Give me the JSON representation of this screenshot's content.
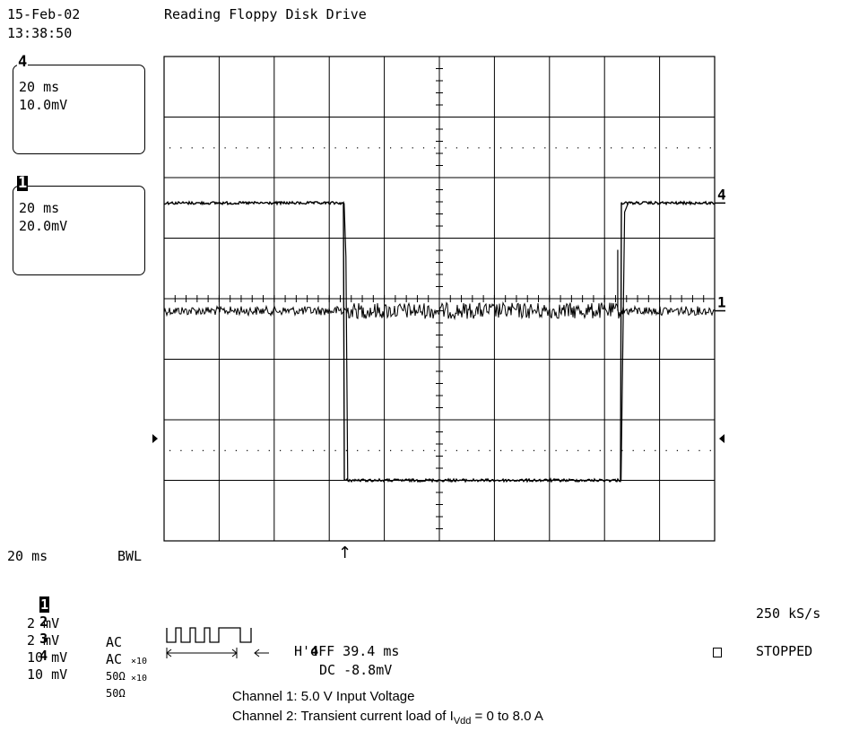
{
  "header": {
    "date": "15-Feb-02",
    "time": "13:38:50",
    "title": "Reading Floppy Disk Drive"
  },
  "channel_boxes": [
    {
      "number": "4",
      "timebase": "20 ms",
      "volts": "10.0mV"
    },
    {
      "number": "1",
      "timebase": "20 ms",
      "volts": "20.0mV"
    }
  ],
  "traces": [
    {
      "label": "1",
      "kind": "noisy-flat",
      "level_div": 4.2
    },
    {
      "label": "4",
      "kind": "pulse",
      "high_div": 2.55,
      "low_div": 1.0,
      "fall_div": 3.27,
      "rise_div": 8.3
    }
  ],
  "trigger_marker": "↑",
  "readout": {
    "timebase": "20 ms",
    "bwl": "BWL",
    "channels": [
      {
        "num": "1",
        "scale": "2 mV",
        "coupling": "AC",
        "probe": "×10",
        "inverted": true
      },
      {
        "num": "2",
        "scale": "2 mV",
        "coupling": "AC",
        "probe": "×10",
        "inverted": false
      },
      {
        "num": "3",
        "scale": "10 mV",
        "coupling": "50Ω",
        "probe": "",
        "inverted": false
      },
      {
        "num": "4",
        "scale": "10 mV",
        "coupling": "50Ω",
        "probe": "",
        "inverted": false
      }
    ],
    "trigger_channel": "4",
    "trigger_coupling": "DC -8.8mV",
    "holdoff": "H'oFF 39.4 ms",
    "sample_rate": "250 kS/s",
    "status": "STOPPED"
  },
  "caption": {
    "line1": "Channel 1: 5.0 V Input Voltage",
    "line2_prefix": "Channel 2: Transient current load of I",
    "line2_sub": "Vdd",
    "line2_suffix": " = 0 to 8.0 A"
  }
}
